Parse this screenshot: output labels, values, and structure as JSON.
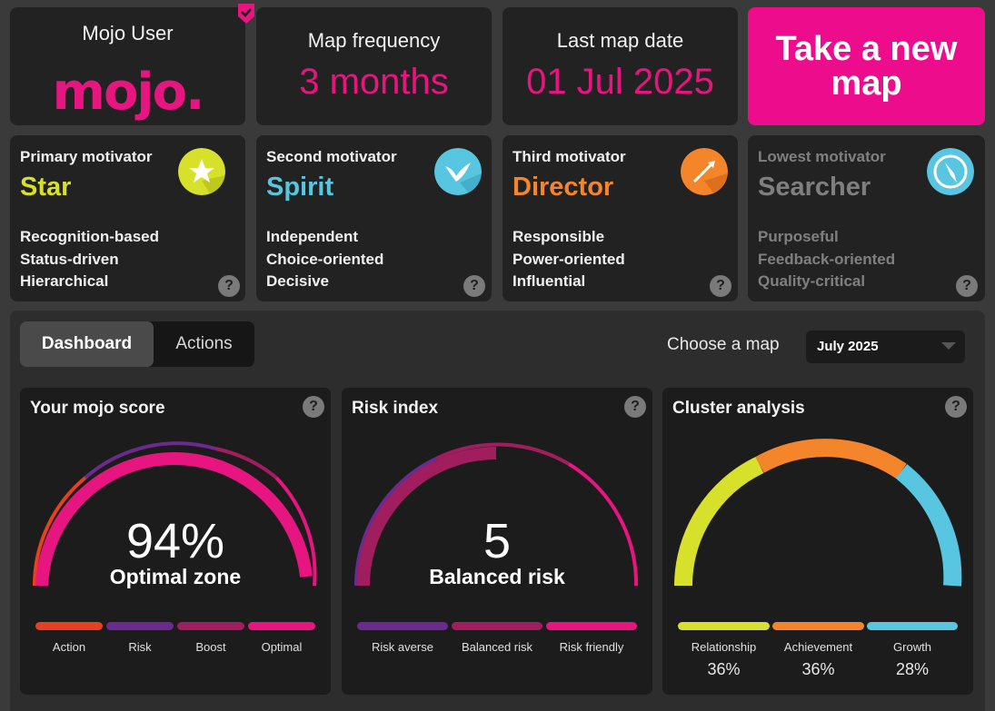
{
  "user": {
    "name": "Mojo User",
    "logo_text": "mojo."
  },
  "frequency": {
    "title": "Map frequency",
    "value": "3 months"
  },
  "last_map": {
    "title": "Last map date",
    "value": "01 Jul 2025"
  },
  "cta": {
    "label": "Take a new map"
  },
  "motivators": [
    {
      "label": "Primary motivator",
      "name": "Star",
      "color": "#d7e02a",
      "icon": "star-icon",
      "traits": [
        "Recognition-based",
        "Status-driven",
        "Hierarchical"
      ]
    },
    {
      "label": "Second motivator",
      "name": "Spirit",
      "color": "#58c6e0",
      "icon": "bird-icon",
      "traits": [
        "Independent",
        "Choice-oriented",
        "Decisive"
      ]
    },
    {
      "label": "Third motivator",
      "name": "Director",
      "color": "#f5852a",
      "icon": "arrow-icon",
      "traits": [
        "Responsible",
        "Power-oriented",
        "Influential"
      ]
    },
    {
      "label": "Lowest motivator",
      "name": "Searcher",
      "color": "#58c6e0",
      "icon": "compass-icon",
      "traits": [
        "Purposeful",
        "Feedback-oriented",
        "Quality-critical"
      ]
    }
  ],
  "help_symbol": "?",
  "tabs": [
    {
      "label": "Dashboard",
      "active": true
    },
    {
      "label": "Actions",
      "active": false
    }
  ],
  "map_select": {
    "label": "Choose a map",
    "value": "July 2025"
  },
  "mojo_score": {
    "title": "Your mojo score",
    "value": "94%",
    "zone": "Optimal zone",
    "segments": [
      {
        "label": "Action",
        "color": "#e7401f"
      },
      {
        "label": "Risk",
        "color": "#6a2a8e"
      },
      {
        "label": "Boost",
        "color": "#a11e5e"
      },
      {
        "label": "Optimal",
        "color": "#e6157f"
      }
    ]
  },
  "risk_index": {
    "title": "Risk index",
    "value": "5",
    "label": "Balanced risk",
    "segments": [
      {
        "label": "Risk averse",
        "color": "#6a2a8e"
      },
      {
        "label": "Balanced risk",
        "color": "#a11e5e"
      },
      {
        "label": "Risk friendly",
        "color": "#e6157f"
      }
    ]
  },
  "cluster": {
    "title": "Cluster analysis",
    "segments": [
      {
        "label": "Relationship",
        "percent": "36%",
        "value": 36,
        "color": "#d7e02a"
      },
      {
        "label": "Achievement",
        "percent": "36%",
        "value": 36,
        "color": "#f5852a"
      },
      {
        "label": "Growth",
        "percent": "28%",
        "value": 28,
        "color": "#58c6e0"
      }
    ]
  }
}
